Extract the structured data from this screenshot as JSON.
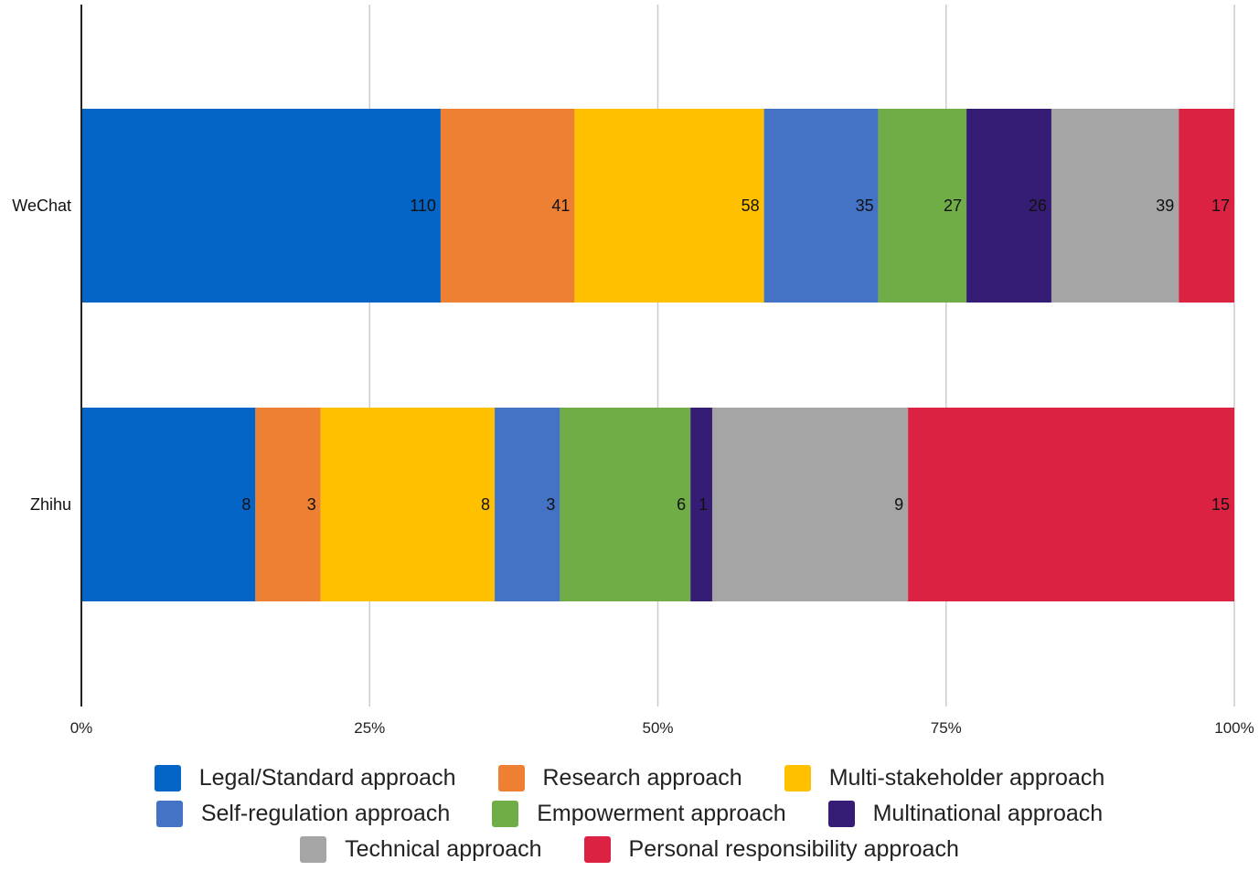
{
  "chart_data": {
    "type": "bar",
    "orientation": "horizontal",
    "stacked": true,
    "normalized": true,
    "categories": [
      "WeChat",
      "Zhihu"
    ],
    "series": [
      {
        "name": "Legal/Standard approach",
        "color": "#0565C6",
        "values": [
          110,
          8
        ]
      },
      {
        "name": "Research approach",
        "color": "#EE8033",
        "values": [
          41,
          3
        ]
      },
      {
        "name": "Multi-stakeholder approach",
        "color": "#FFC000",
        "values": [
          58,
          8
        ]
      },
      {
        "name": "Self-regulation approach",
        "color": "#4472C4",
        "values": [
          35,
          3
        ]
      },
      {
        "name": "Empowerment approach",
        "color": "#71AD47",
        "values": [
          27,
          6
        ]
      },
      {
        "name": "Multinational approach",
        "color": "#351C74",
        "values": [
          26,
          1
        ]
      },
      {
        "name": "Technical approach",
        "color": "#A5A5A5",
        "values": [
          39,
          9
        ]
      },
      {
        "name": "Personal responsibility approach",
        "color": "#DB2242",
        "values": [
          17,
          15
        ]
      }
    ],
    "x_ticks": [
      "0%",
      "25%",
      "50%",
      "75%",
      "100%"
    ],
    "xlim": [
      0,
      100
    ],
    "grid": true,
    "legend_position": "bottom",
    "title": "",
    "xlabel": "",
    "ylabel": ""
  }
}
